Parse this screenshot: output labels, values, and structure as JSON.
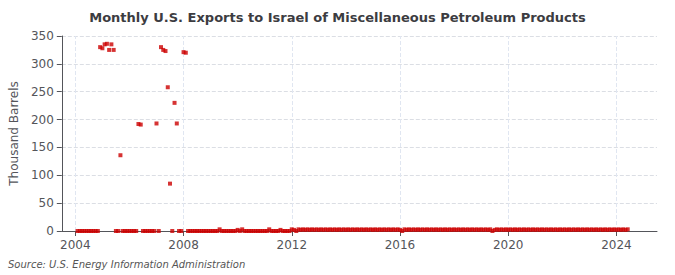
{
  "chart_data": {
    "type": "scatter",
    "title": "Monthly U.S. Exports to Israel of Miscellaneous Petroleum Products",
    "y_label": "Thousand Barrels",
    "source": "Source: U.S. Energy Information Administration",
    "color": "#cc0000",
    "marker": "square",
    "grid": true,
    "xlim": [
      2003.5,
      2025.5
    ],
    "xticks": [
      2004,
      2008,
      2012,
      2016,
      2020,
      2024
    ],
    "ylim": [
      0,
      350
    ],
    "yticks": [
      0,
      50,
      100,
      150,
      200,
      250,
      300,
      350
    ],
    "x": [
      2004.083,
      2004.167,
      2004.25,
      2004.333,
      2004.417,
      2004.5,
      2004.583,
      2004.667,
      2004.75,
      2004.833,
      2004.917,
      2005.0,
      2005.083,
      2005.167,
      2005.25,
      2005.333,
      2005.417,
      2005.5,
      2005.583,
      2005.667,
      2005.75,
      2005.833,
      2005.917,
      2006.0,
      2006.083,
      2006.167,
      2006.25,
      2006.333,
      2006.417,
      2006.5,
      2006.583,
      2006.667,
      2006.75,
      2006.833,
      2006.917,
      2007.0,
      2007.083,
      2007.167,
      2007.25,
      2007.333,
      2007.417,
      2007.5,
      2007.583,
      2007.667,
      2007.75,
      2007.833,
      2007.917,
      2008.0,
      2008.083,
      2008.167,
      2008.25,
      2008.333,
      2008.417,
      2008.5,
      2008.583,
      2008.667,
      2008.75,
      2008.833,
      2008.917,
      2009.0,
      2009.083,
      2009.167,
      2009.25,
      2009.333,
      2009.417,
      2009.5,
      2009.583,
      2009.667,
      2009.75,
      2009.833,
      2009.917,
      2010.0,
      2010.083,
      2010.167,
      2010.25,
      2010.333,
      2010.417,
      2010.5,
      2010.583,
      2010.667,
      2010.75,
      2010.833,
      2010.917,
      2011.0,
      2011.083,
      2011.167,
      2011.25,
      2011.333,
      2011.417,
      2011.5,
      2011.583,
      2011.667,
      2011.75,
      2011.833,
      2011.917,
      2012.0,
      2012.083,
      2012.167,
      2012.25,
      2012.333,
      2012.417,
      2012.5,
      2012.583,
      2012.667,
      2012.75,
      2012.833,
      2012.917,
      2013.0,
      2013.083,
      2013.167,
      2013.25,
      2013.333,
      2013.417,
      2013.5,
      2013.583,
      2013.667,
      2013.75,
      2013.833,
      2013.917,
      2014.0,
      2014.083,
      2014.167,
      2014.25,
      2014.333,
      2014.417,
      2014.5,
      2014.583,
      2014.667,
      2014.75,
      2014.833,
      2014.917,
      2015.0,
      2015.083,
      2015.167,
      2015.25,
      2015.333,
      2015.417,
      2015.5,
      2015.583,
      2015.667,
      2015.75,
      2015.833,
      2015.917,
      2016.0,
      2016.083,
      2016.167,
      2016.25,
      2016.333,
      2016.417,
      2016.5,
      2016.583,
      2016.667,
      2016.75,
      2016.833,
      2016.917,
      2017.0,
      2017.083,
      2017.167,
      2017.25,
      2017.333,
      2017.417,
      2017.5,
      2017.583,
      2017.667,
      2017.75,
      2017.833,
      2017.917,
      2018.0,
      2018.083,
      2018.167,
      2018.25,
      2018.333,
      2018.417,
      2018.5,
      2018.583,
      2018.667,
      2018.75,
      2018.833,
      2018.917,
      2019.0,
      2019.083,
      2019.167,
      2019.25,
      2019.333,
      2019.417,
      2019.5,
      2019.583,
      2019.667,
      2019.75,
      2019.833,
      2019.917,
      2020.0,
      2020.083,
      2020.167,
      2020.25,
      2020.333,
      2020.417,
      2020.5,
      2020.583,
      2020.667,
      2020.75,
      2020.833,
      2020.917,
      2021.0,
      2021.083,
      2021.167,
      2021.25,
      2021.333,
      2021.417,
      2021.5,
      2021.583,
      2021.667,
      2021.75,
      2021.833,
      2021.917,
      2022.0,
      2022.083,
      2022.167,
      2022.25,
      2022.333,
      2022.417,
      2022.5,
      2022.583,
      2022.667,
      2022.75,
      2022.833,
      2022.917,
      2023.0,
      2023.083,
      2023.167,
      2023.25,
      2023.333,
      2023.417,
      2023.5,
      2023.583,
      2023.667,
      2023.75,
      2023.833,
      2023.917,
      2024.0,
      2024.083,
      2024.167,
      2024.25,
      2024.333,
      2024.417
    ],
    "values": [
      0,
      0,
      0,
      0,
      0,
      0,
      0,
      0,
      0,
      0,
      330,
      328,
      335,
      336,
      325,
      335,
      325,
      0,
      0,
      136,
      0,
      0,
      0,
      0,
      0,
      0,
      0,
      192,
      191,
      0,
      0,
      0,
      0,
      0,
      0,
      193,
      0,
      330,
      325,
      323,
      258,
      85,
      0,
      230,
      193,
      0,
      0,
      321,
      320,
      0,
      0,
      0,
      0,
      0,
      0,
      0,
      0,
      0,
      0,
      0,
      0,
      0,
      0,
      3,
      0,
      0,
      0,
      0,
      0,
      0,
      0,
      2,
      0,
      3,
      0,
      0,
      0,
      0,
      0,
      0,
      0,
      0,
      0,
      0,
      0,
      3,
      0,
      0,
      0,
      0,
      2,
      0,
      0,
      0,
      0,
      3,
      2,
      0,
      3,
      2,
      3,
      2,
      3,
      2,
      3,
      2,
      3,
      2,
      3,
      2,
      3,
      2,
      3,
      2,
      3,
      2,
      3,
      2,
      3,
      2,
      3,
      2,
      3,
      2,
      3,
      2,
      3,
      2,
      3,
      2,
      3,
      2,
      3,
      2,
      3,
      2,
      3,
      2,
      3,
      2,
      3,
      2,
      3,
      2,
      0,
      3,
      2,
      3,
      2,
      3,
      2,
      3,
      2,
      3,
      2,
      3,
      2,
      3,
      2,
      3,
      2,
      3,
      2,
      3,
      2,
      3,
      2,
      3,
      2,
      3,
      2,
      3,
      2,
      3,
      2,
      3,
      2,
      3,
      2,
      3,
      2,
      3,
      2,
      3,
      0,
      2,
      3,
      2,
      3,
      2,
      3,
      2,
      3,
      2,
      3,
      2,
      3,
      2,
      3,
      2,
      3,
      2,
      3,
      2,
      3,
      2,
      3,
      2,
      3,
      2,
      3,
      2,
      3,
      2,
      3,
      2,
      3,
      2,
      3,
      2,
      3,
      2,
      3,
      2,
      3,
      2,
      3,
      2,
      3,
      2,
      3,
      2,
      3,
      2,
      3,
      2,
      3,
      2,
      3,
      2,
      3,
      2,
      3,
      2,
      3
    ]
  }
}
